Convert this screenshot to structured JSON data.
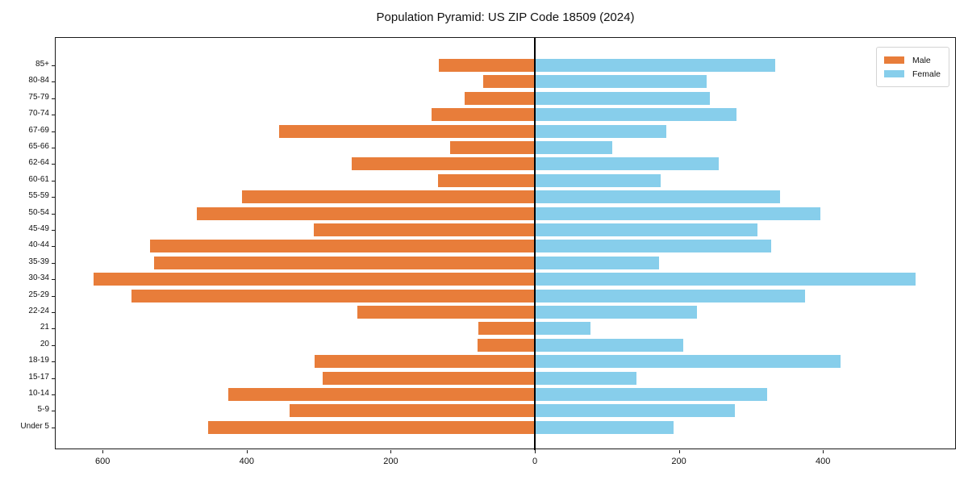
{
  "title": "Population Pyramid: US ZIP Code 18509 (2024)",
  "legend": {
    "male_label": "Male",
    "female_label": "Female",
    "position": "upper right"
  },
  "colors": {
    "male": "#E87D3A",
    "female": "#87CEEB",
    "zero_line": "#000000",
    "spine": "#1A1A1A",
    "background": "#FFFFFF"
  },
  "chart_data": {
    "type": "bar",
    "subtype": "population-pyramid",
    "title": "Population Pyramid: US ZIP Code 18509 (2024)",
    "xlabel": "",
    "ylabel": "",
    "grid": false,
    "legend_position": "upper right",
    "categories_top_to_bottom": [
      "85+",
      "80-84",
      "75-79",
      "70-74",
      "67-69",
      "65-66",
      "62-64",
      "60-61",
      "55-59",
      "50-54",
      "45-49",
      "40-44",
      "35-39",
      "30-34",
      "25-29",
      "22-24",
      "21",
      "20",
      "18-19",
      "15-17",
      "10-14",
      "5-9",
      "Under 5"
    ],
    "series": [
      {
        "name": "Male",
        "side": "left",
        "color": "#E87D3A",
        "values": [
          133,
          72,
          98,
          143,
          355,
          118,
          254,
          134,
          407,
          469,
          307,
          534,
          529,
          613,
          560,
          246,
          78,
          80,
          306,
          295,
          426,
          341,
          454
        ]
      },
      {
        "name": "Female",
        "side": "right",
        "color": "#87CEEB",
        "values": [
          334,
          239,
          243,
          280,
          183,
          108,
          255,
          175,
          340,
          396,
          309,
          328,
          172,
          529,
          375,
          225,
          77,
          206,
          424,
          141,
          323,
          278,
          192
        ]
      }
    ],
    "x_tick_values": [
      -600,
      -400,
      -200,
      0,
      200,
      400
    ],
    "x_tick_labels": [
      "600",
      "400",
      "200",
      "0",
      "200",
      "400"
    ],
    "xlim": [
      -665,
      586
    ]
  }
}
